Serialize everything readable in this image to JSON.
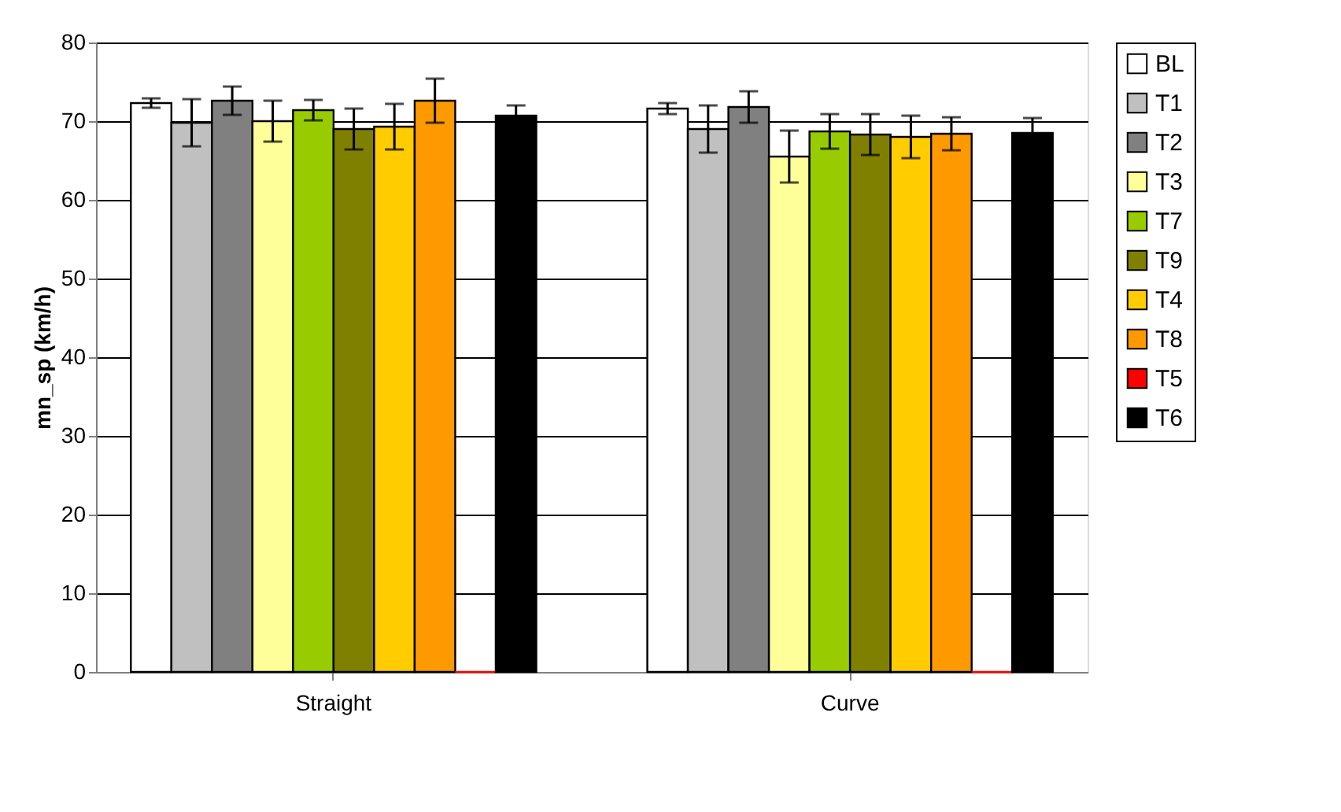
{
  "chart_data": {
    "type": "bar",
    "ylabel": "mn_sp (km/h)",
    "categories": [
      "Straight",
      "Curve"
    ],
    "series": [
      {
        "name": "BL",
        "color": "#ffffff",
        "values": [
          72.3,
          71.6
        ],
        "errors": [
          0.6,
          0.7
        ]
      },
      {
        "name": "T1",
        "color": "#c0c0c0",
        "values": [
          69.8,
          69.0
        ],
        "errors": [
          3.0,
          3.0
        ]
      },
      {
        "name": "T2",
        "color": "#808080",
        "values": [
          72.6,
          71.8
        ],
        "errors": [
          1.8,
          2.0
        ]
      },
      {
        "name": "T3",
        "color": "#ffff99",
        "values": [
          70.0,
          65.5
        ],
        "errors": [
          2.6,
          3.3
        ]
      },
      {
        "name": "T7",
        "color": "#99cc00",
        "values": [
          71.4,
          68.7
        ],
        "errors": [
          1.3,
          2.2
        ]
      },
      {
        "name": "T9",
        "color": "#808000",
        "values": [
          69.0,
          68.3
        ],
        "errors": [
          2.6,
          2.6
        ]
      },
      {
        "name": "T4",
        "color": "#ffcc00",
        "values": [
          69.3,
          68.0
        ],
        "errors": [
          2.9,
          2.7
        ]
      },
      {
        "name": "T8",
        "color": "#ff9900",
        "values": [
          72.6,
          68.4
        ],
        "errors": [
          2.8,
          2.1
        ]
      },
      {
        "name": "T5",
        "color": "#ff0000",
        "values": [
          0,
          0
        ]
      },
      {
        "name": "T6",
        "color": "#000000",
        "values": [
          70.7,
          68.5
        ],
        "errors": [
          1.3,
          1.9
        ]
      }
    ],
    "ylim": [
      0,
      80
    ],
    "yticks": [
      0,
      10,
      20,
      30,
      40,
      50,
      60,
      70,
      80
    ],
    "grid": "y",
    "legend": "right"
  }
}
